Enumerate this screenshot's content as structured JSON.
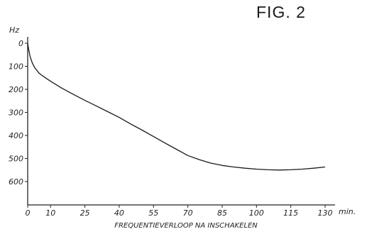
{
  "figure_label": "FIG. 2",
  "chart_data": {
    "type": "line",
    "title": "",
    "xlabel": "FREQUENTIEVERLOOP NA INSCHAKELEN",
    "x_unit": "min.",
    "ylabel": "Hz",
    "x_ticks": [
      0,
      10,
      25,
      40,
      55,
      70,
      85,
      100,
      115,
      130
    ],
    "y_ticks": [
      0,
      100,
      200,
      300,
      400,
      500,
      600
    ],
    "xlim": [
      0,
      130
    ],
    "ylim": [
      0,
      600
    ],
    "y_inverted": true,
    "grid": false,
    "series": [
      {
        "x": [
          0,
          0.5,
          1,
          2,
          3,
          5,
          7,
          10,
          15,
          20,
          25,
          30,
          35,
          40,
          45,
          50,
          55,
          60,
          65,
          70,
          75,
          80,
          85,
          90,
          95,
          100,
          105,
          110,
          115,
          120,
          125,
          130
        ],
        "y": [
          0,
          30,
          55,
          85,
          105,
          130,
          145,
          165,
          195,
          222,
          248,
          272,
          297,
          322,
          350,
          377,
          405,
          433,
          460,
          487,
          505,
          520,
          530,
          537,
          542,
          546,
          549,
          550,
          549,
          546,
          542,
          537
        ]
      }
    ]
  }
}
